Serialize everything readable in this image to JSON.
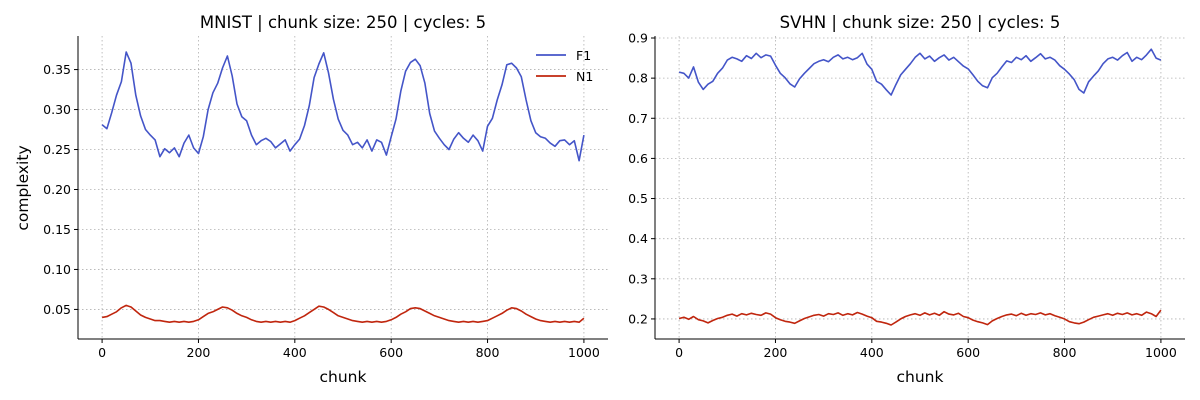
{
  "chart_data": [
    {
      "type": "line",
      "title": "MNIST | chunk size: 250 | cycles: 5",
      "xlabel": "chunk",
      "ylabel": "complexity",
      "xlim": [
        -50,
        1050
      ],
      "ylim": [
        0.013,
        0.392
      ],
      "xticks": [
        0,
        200,
        400,
        600,
        800,
        1000
      ],
      "xtick_labels": [
        "0",
        "200",
        "400",
        "600",
        "800",
        "1000"
      ],
      "yticks": [
        0.05,
        0.1,
        0.15,
        0.2,
        0.25,
        0.3,
        0.35
      ],
      "ytick_labels": [
        "0.05",
        "0.10",
        "0.15",
        "0.20",
        "0.25",
        "0.30",
        "0.35"
      ],
      "grid": true,
      "legend": "top-right",
      "x": [
        0,
        10,
        20,
        30,
        40,
        50,
        60,
        70,
        80,
        90,
        100,
        110,
        120,
        130,
        140,
        150,
        160,
        170,
        180,
        190,
        200,
        210,
        220,
        230,
        240,
        250,
        260,
        270,
        280,
        290,
        300,
        310,
        320,
        330,
        340,
        350,
        360,
        370,
        380,
        390,
        400,
        410,
        420,
        430,
        440,
        450,
        460,
        470,
        480,
        490,
        500,
        510,
        520,
        530,
        540,
        550,
        560,
        570,
        580,
        590,
        600,
        610,
        620,
        630,
        640,
        650,
        660,
        670,
        680,
        690,
        700,
        710,
        720,
        730,
        740,
        750,
        760,
        770,
        780,
        790,
        800,
        810,
        820,
        830,
        840,
        850,
        860,
        870,
        880,
        890,
        900,
        910,
        920,
        930,
        940,
        950,
        960,
        970,
        980,
        990,
        1000
      ],
      "series": [
        {
          "name": "F1",
          "color": "#4455c8",
          "values": [
            0.281,
            0.276,
            0.296,
            0.318,
            0.335,
            0.372,
            0.358,
            0.318,
            0.292,
            0.275,
            0.268,
            0.262,
            0.241,
            0.251,
            0.246,
            0.252,
            0.241,
            0.258,
            0.268,
            0.252,
            0.245,
            0.266,
            0.3,
            0.321,
            0.333,
            0.352,
            0.367,
            0.342,
            0.307,
            0.291,
            0.286,
            0.268,
            0.256,
            0.261,
            0.264,
            0.26,
            0.252,
            0.257,
            0.262,
            0.248,
            0.256,
            0.263,
            0.28,
            0.305,
            0.34,
            0.357,
            0.371,
            0.346,
            0.313,
            0.288,
            0.274,
            0.268,
            0.256,
            0.259,
            0.252,
            0.262,
            0.248,
            0.262,
            0.259,
            0.243,
            0.266,
            0.288,
            0.323,
            0.348,
            0.359,
            0.363,
            0.355,
            0.333,
            0.295,
            0.273,
            0.264,
            0.256,
            0.25,
            0.263,
            0.271,
            0.264,
            0.259,
            0.268,
            0.261,
            0.248,
            0.279,
            0.289,
            0.312,
            0.331,
            0.356,
            0.358,
            0.352,
            0.341,
            0.312,
            0.286,
            0.271,
            0.266,
            0.264,
            0.258,
            0.254,
            0.261,
            0.262,
            0.256,
            0.261,
            0.236,
            0.268
          ]
        },
        {
          "name": "N1",
          "color": "#c0260e",
          "values": [
            0.04,
            0.041,
            0.044,
            0.047,
            0.052,
            0.055,
            0.053,
            0.048,
            0.043,
            0.04,
            0.038,
            0.036,
            0.036,
            0.035,
            0.034,
            0.035,
            0.034,
            0.035,
            0.034,
            0.035,
            0.037,
            0.041,
            0.045,
            0.047,
            0.05,
            0.053,
            0.052,
            0.049,
            0.045,
            0.042,
            0.04,
            0.037,
            0.035,
            0.034,
            0.035,
            0.034,
            0.035,
            0.034,
            0.035,
            0.034,
            0.036,
            0.039,
            0.042,
            0.046,
            0.05,
            0.054,
            0.053,
            0.05,
            0.046,
            0.042,
            0.04,
            0.038,
            0.036,
            0.035,
            0.034,
            0.035,
            0.034,
            0.035,
            0.034,
            0.035,
            0.037,
            0.04,
            0.044,
            0.047,
            0.051,
            0.052,
            0.051,
            0.048,
            0.045,
            0.042,
            0.04,
            0.038,
            0.036,
            0.035,
            0.034,
            0.035,
            0.034,
            0.035,
            0.034,
            0.035,
            0.036,
            0.039,
            0.042,
            0.045,
            0.049,
            0.052,
            0.051,
            0.048,
            0.044,
            0.041,
            0.038,
            0.036,
            0.035,
            0.034,
            0.035,
            0.034,
            0.035,
            0.034,
            0.035,
            0.034,
            0.039
          ]
        }
      ]
    },
    {
      "type": "line",
      "title": "SVHN | chunk size: 250 | cycles: 5",
      "xlabel": "chunk",
      "ylabel": "",
      "xlim": [
        -50,
        1050
      ],
      "ylim": [
        0.15,
        0.905
      ],
      "xticks": [
        0,
        200,
        400,
        600,
        800,
        1000
      ],
      "xtick_labels": [
        "0",
        "200",
        "400",
        "600",
        "800",
        "1000"
      ],
      "yticks": [
        0.2,
        0.3,
        0.4,
        0.5,
        0.6,
        0.7,
        0.8,
        0.9
      ],
      "ytick_labels": [
        "0.2",
        "0.3",
        "0.4",
        "0.5",
        "0.6",
        "0.7",
        "0.8",
        "0.9"
      ],
      "grid": true,
      "legend": "none",
      "x": [
        0,
        10,
        20,
        30,
        40,
        50,
        60,
        70,
        80,
        90,
        100,
        110,
        120,
        130,
        140,
        150,
        160,
        170,
        180,
        190,
        200,
        210,
        220,
        230,
        240,
        250,
        260,
        270,
        280,
        290,
        300,
        310,
        320,
        330,
        340,
        350,
        360,
        370,
        380,
        390,
        400,
        410,
        420,
        430,
        440,
        450,
        460,
        470,
        480,
        490,
        500,
        510,
        520,
        530,
        540,
        550,
        560,
        570,
        580,
        590,
        600,
        610,
        620,
        630,
        640,
        650,
        660,
        670,
        680,
        690,
        700,
        710,
        720,
        730,
        740,
        750,
        760,
        770,
        780,
        790,
        800,
        810,
        820,
        830,
        840,
        850,
        860,
        870,
        880,
        890,
        900,
        910,
        920,
        930,
        940,
        950,
        960,
        970,
        980,
        990,
        1000
      ],
      "series": [
        {
          "name": "F1",
          "color": "#4455c8",
          "values": [
            0.815,
            0.812,
            0.8,
            0.828,
            0.79,
            0.772,
            0.785,
            0.792,
            0.812,
            0.825,
            0.845,
            0.852,
            0.848,
            0.842,
            0.856,
            0.849,
            0.862,
            0.851,
            0.858,
            0.855,
            0.832,
            0.812,
            0.801,
            0.786,
            0.778,
            0.798,
            0.812,
            0.824,
            0.836,
            0.842,
            0.846,
            0.841,
            0.852,
            0.858,
            0.848,
            0.852,
            0.846,
            0.851,
            0.862,
            0.835,
            0.822,
            0.792,
            0.785,
            0.771,
            0.758,
            0.784,
            0.808,
            0.822,
            0.836,
            0.852,
            0.862,
            0.848,
            0.855,
            0.842,
            0.851,
            0.858,
            0.845,
            0.852,
            0.841,
            0.83,
            0.823,
            0.808,
            0.792,
            0.781,
            0.776,
            0.801,
            0.812,
            0.828,
            0.843,
            0.839,
            0.852,
            0.846,
            0.856,
            0.842,
            0.851,
            0.861,
            0.848,
            0.852,
            0.845,
            0.831,
            0.822,
            0.81,
            0.796,
            0.772,
            0.763,
            0.791,
            0.805,
            0.818,
            0.836,
            0.848,
            0.852,
            0.845,
            0.856,
            0.864,
            0.842,
            0.852,
            0.846,
            0.858,
            0.872,
            0.85,
            0.845
          ]
        },
        {
          "name": "N1",
          "color": "#c0260e",
          "values": [
            0.201,
            0.204,
            0.199,
            0.206,
            0.198,
            0.195,
            0.19,
            0.196,
            0.201,
            0.204,
            0.209,
            0.212,
            0.207,
            0.213,
            0.21,
            0.214,
            0.211,
            0.209,
            0.215,
            0.212,
            0.203,
            0.198,
            0.194,
            0.192,
            0.189,
            0.195,
            0.201,
            0.205,
            0.209,
            0.211,
            0.207,
            0.213,
            0.211,
            0.215,
            0.209,
            0.213,
            0.21,
            0.216,
            0.212,
            0.207,
            0.203,
            0.194,
            0.192,
            0.189,
            0.185,
            0.192,
            0.2,
            0.206,
            0.21,
            0.213,
            0.209,
            0.215,
            0.21,
            0.214,
            0.209,
            0.218,
            0.212,
            0.21,
            0.214,
            0.206,
            0.203,
            0.197,
            0.193,
            0.19,
            0.186,
            0.195,
            0.201,
            0.206,
            0.21,
            0.212,
            0.208,
            0.214,
            0.209,
            0.213,
            0.211,
            0.215,
            0.21,
            0.213,
            0.208,
            0.204,
            0.2,
            0.193,
            0.19,
            0.188,
            0.192,
            0.198,
            0.204,
            0.207,
            0.21,
            0.213,
            0.209,
            0.214,
            0.211,
            0.215,
            0.21,
            0.213,
            0.209,
            0.217,
            0.213,
            0.206,
            0.222
          ]
        }
      ]
    }
  ]
}
